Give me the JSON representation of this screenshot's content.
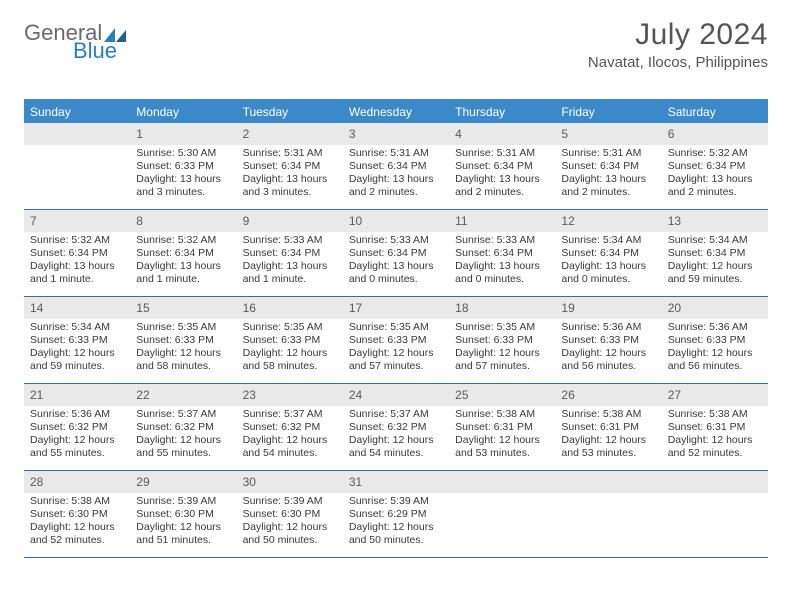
{
  "brand": {
    "part1": "General",
    "part2": "Blue"
  },
  "title": "July 2024",
  "location": "Navatat, Ilocos, Philippines",
  "colors": {
    "header_bg": "#3b89c9",
    "row_divider": "#2f6fa8",
    "daynum_bg": "#e9e9e9",
    "text": "#3a3a3a",
    "title_text": "#555555"
  },
  "days_of_week": [
    "Sunday",
    "Monday",
    "Tuesday",
    "Wednesday",
    "Thursday",
    "Friday",
    "Saturday"
  ],
  "weeks": [
    [
      {
        "n": "",
        "sunrise": "",
        "sunset": "",
        "daylight": ""
      },
      {
        "n": "1",
        "sunrise": "Sunrise: 5:30 AM",
        "sunset": "Sunset: 6:33 PM",
        "daylight": "Daylight: 13 hours and 3 minutes."
      },
      {
        "n": "2",
        "sunrise": "Sunrise: 5:31 AM",
        "sunset": "Sunset: 6:34 PM",
        "daylight": "Daylight: 13 hours and 3 minutes."
      },
      {
        "n": "3",
        "sunrise": "Sunrise: 5:31 AM",
        "sunset": "Sunset: 6:34 PM",
        "daylight": "Daylight: 13 hours and 2 minutes."
      },
      {
        "n": "4",
        "sunrise": "Sunrise: 5:31 AM",
        "sunset": "Sunset: 6:34 PM",
        "daylight": "Daylight: 13 hours and 2 minutes."
      },
      {
        "n": "5",
        "sunrise": "Sunrise: 5:31 AM",
        "sunset": "Sunset: 6:34 PM",
        "daylight": "Daylight: 13 hours and 2 minutes."
      },
      {
        "n": "6",
        "sunrise": "Sunrise: 5:32 AM",
        "sunset": "Sunset: 6:34 PM",
        "daylight": "Daylight: 13 hours and 2 minutes."
      }
    ],
    [
      {
        "n": "7",
        "sunrise": "Sunrise: 5:32 AM",
        "sunset": "Sunset: 6:34 PM",
        "daylight": "Daylight: 13 hours and 1 minute."
      },
      {
        "n": "8",
        "sunrise": "Sunrise: 5:32 AM",
        "sunset": "Sunset: 6:34 PM",
        "daylight": "Daylight: 13 hours and 1 minute."
      },
      {
        "n": "9",
        "sunrise": "Sunrise: 5:33 AM",
        "sunset": "Sunset: 6:34 PM",
        "daylight": "Daylight: 13 hours and 1 minute."
      },
      {
        "n": "10",
        "sunrise": "Sunrise: 5:33 AM",
        "sunset": "Sunset: 6:34 PM",
        "daylight": "Daylight: 13 hours and 0 minutes."
      },
      {
        "n": "11",
        "sunrise": "Sunrise: 5:33 AM",
        "sunset": "Sunset: 6:34 PM",
        "daylight": "Daylight: 13 hours and 0 minutes."
      },
      {
        "n": "12",
        "sunrise": "Sunrise: 5:34 AM",
        "sunset": "Sunset: 6:34 PM",
        "daylight": "Daylight: 13 hours and 0 minutes."
      },
      {
        "n": "13",
        "sunrise": "Sunrise: 5:34 AM",
        "sunset": "Sunset: 6:34 PM",
        "daylight": "Daylight: 12 hours and 59 minutes."
      }
    ],
    [
      {
        "n": "14",
        "sunrise": "Sunrise: 5:34 AM",
        "sunset": "Sunset: 6:33 PM",
        "daylight": "Daylight: 12 hours and 59 minutes."
      },
      {
        "n": "15",
        "sunrise": "Sunrise: 5:35 AM",
        "sunset": "Sunset: 6:33 PM",
        "daylight": "Daylight: 12 hours and 58 minutes."
      },
      {
        "n": "16",
        "sunrise": "Sunrise: 5:35 AM",
        "sunset": "Sunset: 6:33 PM",
        "daylight": "Daylight: 12 hours and 58 minutes."
      },
      {
        "n": "17",
        "sunrise": "Sunrise: 5:35 AM",
        "sunset": "Sunset: 6:33 PM",
        "daylight": "Daylight: 12 hours and 57 minutes."
      },
      {
        "n": "18",
        "sunrise": "Sunrise: 5:35 AM",
        "sunset": "Sunset: 6:33 PM",
        "daylight": "Daylight: 12 hours and 57 minutes."
      },
      {
        "n": "19",
        "sunrise": "Sunrise: 5:36 AM",
        "sunset": "Sunset: 6:33 PM",
        "daylight": "Daylight: 12 hours and 56 minutes."
      },
      {
        "n": "20",
        "sunrise": "Sunrise: 5:36 AM",
        "sunset": "Sunset: 6:33 PM",
        "daylight": "Daylight: 12 hours and 56 minutes."
      }
    ],
    [
      {
        "n": "21",
        "sunrise": "Sunrise: 5:36 AM",
        "sunset": "Sunset: 6:32 PM",
        "daylight": "Daylight: 12 hours and 55 minutes."
      },
      {
        "n": "22",
        "sunrise": "Sunrise: 5:37 AM",
        "sunset": "Sunset: 6:32 PM",
        "daylight": "Daylight: 12 hours and 55 minutes."
      },
      {
        "n": "23",
        "sunrise": "Sunrise: 5:37 AM",
        "sunset": "Sunset: 6:32 PM",
        "daylight": "Daylight: 12 hours and 54 minutes."
      },
      {
        "n": "24",
        "sunrise": "Sunrise: 5:37 AM",
        "sunset": "Sunset: 6:32 PM",
        "daylight": "Daylight: 12 hours and 54 minutes."
      },
      {
        "n": "25",
        "sunrise": "Sunrise: 5:38 AM",
        "sunset": "Sunset: 6:31 PM",
        "daylight": "Daylight: 12 hours and 53 minutes."
      },
      {
        "n": "26",
        "sunrise": "Sunrise: 5:38 AM",
        "sunset": "Sunset: 6:31 PM",
        "daylight": "Daylight: 12 hours and 53 minutes."
      },
      {
        "n": "27",
        "sunrise": "Sunrise: 5:38 AM",
        "sunset": "Sunset: 6:31 PM",
        "daylight": "Daylight: 12 hours and 52 minutes."
      }
    ],
    [
      {
        "n": "28",
        "sunrise": "Sunrise: 5:38 AM",
        "sunset": "Sunset: 6:30 PM",
        "daylight": "Daylight: 12 hours and 52 minutes."
      },
      {
        "n": "29",
        "sunrise": "Sunrise: 5:39 AM",
        "sunset": "Sunset: 6:30 PM",
        "daylight": "Daylight: 12 hours and 51 minutes."
      },
      {
        "n": "30",
        "sunrise": "Sunrise: 5:39 AM",
        "sunset": "Sunset: 6:30 PM",
        "daylight": "Daylight: 12 hours and 50 minutes."
      },
      {
        "n": "31",
        "sunrise": "Sunrise: 5:39 AM",
        "sunset": "Sunset: 6:29 PM",
        "daylight": "Daylight: 12 hours and 50 minutes."
      },
      {
        "n": "",
        "sunrise": "",
        "sunset": "",
        "daylight": ""
      },
      {
        "n": "",
        "sunrise": "",
        "sunset": "",
        "daylight": ""
      },
      {
        "n": "",
        "sunrise": "",
        "sunset": "",
        "daylight": ""
      }
    ]
  ]
}
